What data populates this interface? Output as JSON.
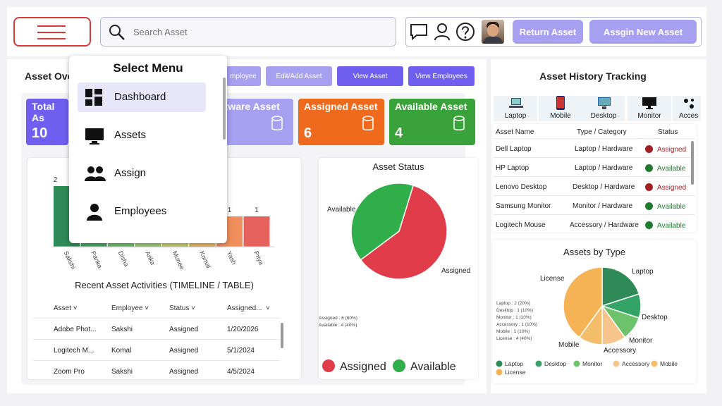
{
  "header": {
    "search_placeholder": "Search Asset",
    "return_label": "Return Asset",
    "assign_label": "Assgin New Asset"
  },
  "main": {
    "title": "Asset Ove",
    "tabs": [
      {
        "label": "mployee",
        "color": "#a79ff0"
      },
      {
        "label": "Edit/Add Asset",
        "color": "#a79ff0"
      },
      {
        "label": "View Asset",
        "color": "#6f5ef0"
      },
      {
        "label": "View Employees",
        "color": "#6f5ef0"
      }
    ],
    "cards": [
      {
        "label": "Total As",
        "value": "10",
        "color": "#6f5ef0"
      },
      {
        "label": "ftware Asset",
        "value": "",
        "color": "#a79ff0"
      },
      {
        "label": "Assigned Asset",
        "value": "6",
        "color": "#ef6a1c"
      },
      {
        "label": "Available Asset",
        "value": "4",
        "color": "#3aa23a"
      }
    ],
    "bar_panel_title": "ssets",
    "bar_top_label": "2",
    "timeline_title": "Recent Asset Activities (TIMELINE / TABLE)",
    "table": {
      "headers": [
        "Asset",
        "Employee",
        "Status",
        "Assigned..."
      ],
      "rows": [
        [
          "Adobe Phot...",
          "Sakshi",
          "Assigned",
          "1/20/2026"
        ],
        [
          "Logitech M...",
          "Komal",
          "Assigned",
          "5/1/2024"
        ],
        [
          "Zoom Pro",
          "Sakshi",
          "Assigned",
          "4/5/2024"
        ]
      ]
    }
  },
  "chart_data": [
    {
      "type": "bar",
      "categories": [
        "Sakshi",
        "Panka...",
        "Disha",
        "Arika",
        "Munee...",
        "Komal",
        "Yash",
        "Priya"
      ],
      "values": [
        2,
        1,
        1,
        1,
        1,
        1,
        1,
        1
      ],
      "data_labels": [
        "2",
        "",
        "",
        "",
        "",
        "",
        "1",
        "1"
      ],
      "colors": [
        "#2e8b57",
        "#4aa564",
        "#6cbf6c",
        "#9acd72",
        "#c7cf6f",
        "#e4b65c",
        "#f08e5c",
        "#e5635c"
      ],
      "title": "ssets",
      "ylim": [
        0,
        2
      ]
    },
    {
      "type": "pie",
      "title": "Asset Status",
      "labels": [
        "Assigned",
        "Available"
      ],
      "values": [
        6,
        4
      ],
      "percents": [
        "60%",
        "40%"
      ],
      "colors": [
        "#e03c4a",
        "#2fae4a"
      ],
      "detail_lines": [
        "Assigned : 6 (60%)",
        "Available : 4 (40%)"
      ],
      "legend": "bottom"
    },
    {
      "type": "pie",
      "title": "Assets by Type",
      "labels": [
        "Laptop",
        "Desktop",
        "Monitor",
        "Accessory",
        "Mobile",
        "License"
      ],
      "values": [
        2,
        1,
        1,
        1,
        1,
        4
      ],
      "percents": [
        "20%",
        "10%",
        "10%",
        "10%",
        "10%",
        "40%"
      ],
      "colors": [
        "#2e8b57",
        "#33a465",
        "#6cc36c",
        "#f6c58c",
        "#f3bd6a",
        "#f5b356"
      ],
      "detail_lines": [
        "Laptop : 2 (20%)",
        "Desktop : 1 (10%)",
        "Monitor : 1 (10%)",
        "Accessory : 1 (10%)",
        "Mobile : 1 (10%)",
        "License : 4 (40%)"
      ],
      "legend": "bottom"
    }
  ],
  "select_menu": {
    "title": "Select Menu",
    "items": [
      {
        "label": "Dashboard",
        "icon": "dashboard-icon"
      },
      {
        "label": "Assets",
        "icon": "monitor-icon"
      },
      {
        "label": "Assign",
        "icon": "group-icon"
      },
      {
        "label": "Employees",
        "icon": "person-icon"
      }
    ]
  },
  "history": {
    "title": "Asset History Tracking",
    "categories": [
      "Laptop",
      "Mobile",
      "Desktop",
      "Monitor",
      "Acces"
    ],
    "headers": [
      "Asset Name",
      "Type / Category",
      "Status"
    ],
    "rows": [
      {
        "name": "Dell Laptop",
        "type": "Laptop / Hardware",
        "status": "Assigned",
        "color": "#a31e22"
      },
      {
        "name": "HP Laptop",
        "type": "Laptop / Hardware",
        "status": "Available",
        "color": "#1e7a2c"
      },
      {
        "name": "Lenovo Desktop",
        "type": "Desktop / Hardware",
        "status": "Assigned",
        "color": "#a31e22"
      },
      {
        "name": "Samsung Monitor",
        "type": "Monitor / Hardware",
        "status": "Available",
        "color": "#1e7a2c"
      },
      {
        "name": "Logitech Mouse",
        "type": "Accessory / Hardware",
        "status": "Available",
        "color": "#1e7a2c"
      }
    ]
  }
}
